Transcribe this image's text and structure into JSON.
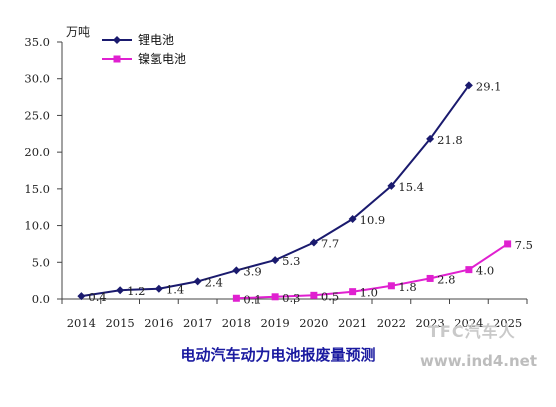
{
  "chart_data": {
    "type": "line",
    "title": "电动汽车动力电池报废量预测",
    "unit_label": "万吨",
    "categories": [
      "2014",
      "2015",
      "2016",
      "2017",
      "2018",
      "2019",
      "2020",
      "2021",
      "2022",
      "2023",
      "2024",
      "2025"
    ],
    "x_tick_labels": [
      "2014",
      "2015",
      "2016",
      "2017",
      "2018",
      "2019",
      "2020",
      "2021",
      "2022",
      "2023",
      "2024",
      "2025"
    ],
    "ylim": [
      0,
      35
    ],
    "y_ticks": [
      0,
      5,
      10,
      15,
      20,
      25,
      30,
      35
    ],
    "y_tick_labels": [
      "0.0",
      "5.0",
      "10.0",
      "15.0",
      "20.0",
      "25.0",
      "30.0",
      "35.0"
    ],
    "grid": false,
    "legend_position": "top-left",
    "series": [
      {
        "name": "锂电池",
        "color": "#1a1a6e",
        "marker": "diamond",
        "x": [
          "2014",
          "2015",
          "2016",
          "2017",
          "2018",
          "2019",
          "2020",
          "2021",
          "2022",
          "2023",
          "2024"
        ],
        "values": [
          0.4,
          1.2,
          1.4,
          2.4,
          3.9,
          5.3,
          7.7,
          10.9,
          15.4,
          21.8,
          29.1
        ],
        "labels": [
          "0.4",
          "1.2",
          "1.4",
          "2.4",
          "3.9",
          "5.3",
          "7.7",
          "10.9",
          "15.4",
          "21.8",
          "29.1"
        ]
      },
      {
        "name": "镍氢电池",
        "color": "#e020d0",
        "marker": "square",
        "x": [
          "2018",
          "2019",
          "2020",
          "2021",
          "2022",
          "2023",
          "2024",
          "2025"
        ],
        "values": [
          0.1,
          0.3,
          0.5,
          1.0,
          1.8,
          2.8,
          4.0,
          7.5
        ],
        "labels": [
          "0.1",
          "0.3",
          "0.5",
          "1.0",
          "1.8",
          "2.8",
          "4.0",
          "7.5"
        ]
      }
    ]
  },
  "watermark": {
    "logo_text": "TFC汽车人",
    "url_text": "www.ind4.net"
  }
}
